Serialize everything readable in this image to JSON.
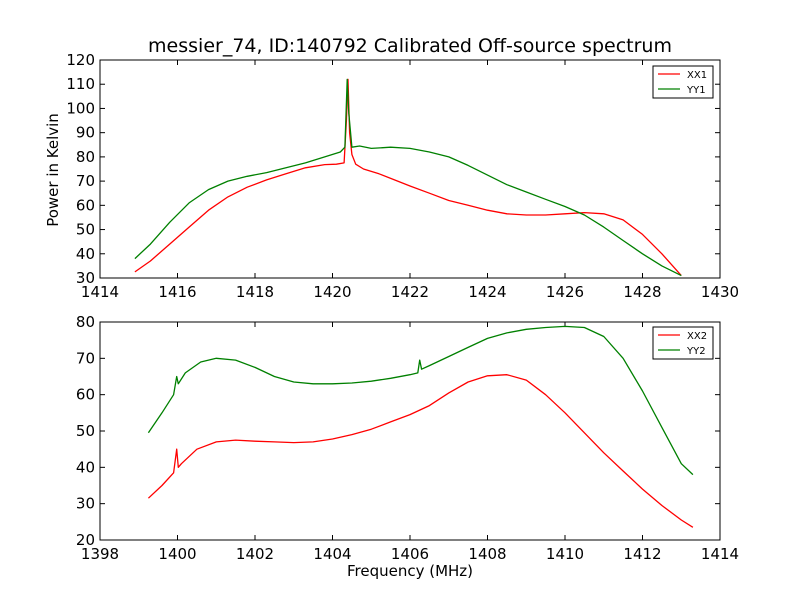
{
  "chart_data": [
    {
      "type": "line",
      "title": "messier_74, ID:140792 Calibrated Off-source spectrum",
      "xlabel": "",
      "ylabel": "Power in Kelvin",
      "xlim": [
        1414,
        1430
      ],
      "ylim": [
        30,
        120
      ],
      "xticks": [
        1414,
        1416,
        1418,
        1420,
        1422,
        1424,
        1426,
        1428,
        1430
      ],
      "yticks": [
        30,
        40,
        50,
        60,
        70,
        80,
        90,
        100,
        110,
        120
      ],
      "legend_position": "top-right",
      "series": [
        {
          "name": "XX1",
          "color": "#ff0000",
          "x": [
            1414.9,
            1415.3,
            1415.8,
            1416.3,
            1416.8,
            1417.3,
            1417.8,
            1418.3,
            1418.8,
            1419.3,
            1419.8,
            1420.1,
            1420.3,
            1420.36,
            1420.4,
            1420.44,
            1420.5,
            1420.6,
            1420.8,
            1421.2,
            1421.6,
            1422.0,
            1422.5,
            1423.0,
            1423.5,
            1424.0,
            1424.5,
            1425.0,
            1425.5,
            1426.0,
            1426.5,
            1427.0,
            1427.5,
            1428.0,
            1428.5,
            1429.0
          ],
          "y": [
            32.5,
            37,
            44,
            51,
            58,
            63.5,
            67.5,
            70.5,
            73,
            75.5,
            76.8,
            77,
            77.5,
            95,
            112,
            90,
            81,
            77,
            75,
            73,
            70.5,
            68,
            65,
            62,
            60,
            58,
            56.5,
            56,
            56,
            56.5,
            57,
            56.5,
            54,
            48,
            40,
            31
          ]
        },
        {
          "name": "YY1",
          "color": "#008000",
          "x": [
            1414.9,
            1415.3,
            1415.8,
            1416.3,
            1416.8,
            1417.3,
            1417.8,
            1418.3,
            1418.8,
            1419.3,
            1419.8,
            1420.2,
            1420.32,
            1420.38,
            1420.42,
            1420.5,
            1420.7,
            1421.0,
            1421.5,
            1422.0,
            1422.5,
            1423.0,
            1423.5,
            1424.0,
            1424.5,
            1425.0,
            1425.5,
            1426.0,
            1426.5,
            1427.0,
            1427.5,
            1428.0,
            1428.5,
            1429.0
          ],
          "y": [
            38,
            44,
            53,
            61,
            66.5,
            70,
            72,
            73.5,
            75.5,
            77.5,
            80,
            82,
            84,
            112,
            98,
            84,
            84.5,
            83.5,
            84,
            83.5,
            82,
            80,
            76.5,
            72.5,
            68.5,
            65.5,
            62.5,
            59.5,
            56,
            51,
            45.5,
            40,
            35,
            31
          ]
        }
      ]
    },
    {
      "type": "line",
      "title": "",
      "xlabel": "Frequency (MHz)",
      "ylabel": "",
      "xlim": [
        1398,
        1414
      ],
      "ylim": [
        20,
        80
      ],
      "xticks": [
        1398,
        1400,
        1402,
        1404,
        1406,
        1408,
        1410,
        1412,
        1414
      ],
      "yticks": [
        20,
        30,
        40,
        50,
        60,
        70,
        80
      ],
      "legend_position": "top-right",
      "series": [
        {
          "name": "XX2",
          "color": "#ff0000",
          "x": [
            1399.25,
            1399.6,
            1399.9,
            1399.98,
            1400.02,
            1400.1,
            1400.5,
            1401.0,
            1401.5,
            1402.0,
            1402.5,
            1403.0,
            1403.5,
            1404.0,
            1404.5,
            1405.0,
            1405.5,
            1406.0,
            1406.5,
            1407.0,
            1407.5,
            1408.0,
            1408.5,
            1409.0,
            1409.5,
            1410.0,
            1410.5,
            1411.0,
            1411.5,
            1412.0,
            1412.5,
            1413.0,
            1413.3
          ],
          "y": [
            31.5,
            35,
            38.5,
            45,
            40,
            41,
            45,
            47,
            47.5,
            47.2,
            47,
            46.8,
            47,
            47.8,
            49,
            50.5,
            52.5,
            54.5,
            57,
            60.5,
            63.5,
            65.2,
            65.5,
            64,
            60,
            55,
            49.5,
            44,
            39,
            34,
            29.5,
            25.5,
            23.5
          ]
        },
        {
          "name": "YY2",
          "color": "#008000",
          "x": [
            1399.25,
            1399.6,
            1399.9,
            1399.98,
            1400.02,
            1400.2,
            1400.6,
            1401.0,
            1401.5,
            1402.0,
            1402.5,
            1403.0,
            1403.5,
            1404.0,
            1404.5,
            1405.0,
            1405.5,
            1406.0,
            1406.2,
            1406.25,
            1406.3,
            1406.5,
            1407.0,
            1407.5,
            1408.0,
            1408.5,
            1409.0,
            1409.5,
            1410.0,
            1410.5,
            1411.0,
            1411.5,
            1412.0,
            1412.5,
            1413.0,
            1413.3
          ],
          "y": [
            49.5,
            55,
            60,
            65,
            63,
            66,
            69,
            70,
            69.5,
            67.5,
            65,
            63.5,
            63,
            63,
            63.2,
            63.7,
            64.5,
            65.5,
            66,
            69.5,
            67,
            68,
            70.5,
            73,
            75.5,
            77,
            78,
            78.5,
            78.8,
            78.5,
            76,
            70,
            61,
            51,
            41,
            38
          ]
        }
      ]
    }
  ]
}
